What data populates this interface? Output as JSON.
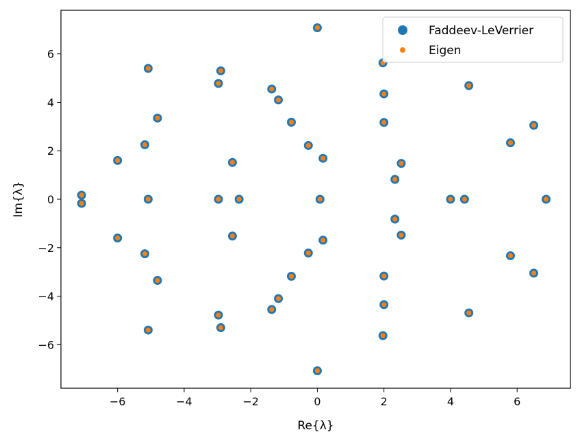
{
  "chart_data": {
    "type": "scatter",
    "title": "",
    "xlabel": "Re{λ}",
    "ylabel": "Im{λ}",
    "xlim": [
      -7.7,
      7.6
    ],
    "ylim": [
      -7.8,
      7.8
    ],
    "xticks": [
      -6,
      -4,
      -2,
      0,
      2,
      4,
      6
    ],
    "yticks": [
      -6,
      -4,
      -2,
      0,
      2,
      4,
      6
    ],
    "tick_labels_x": [
      "−6",
      "−4",
      "−2",
      "0",
      "2",
      "4",
      "6"
    ],
    "tick_labels_y": [
      "−6",
      "−4",
      "−2",
      "0",
      "2",
      "4",
      "6"
    ],
    "grid": false,
    "legend_position": "top-right",
    "series": [
      {
        "name": "Faddeev-LeVerrier",
        "color": "#1f77b4",
        "marker": "large-circle",
        "points": [
          [
            0,
            7.08
          ],
          [
            -5.08,
            5.4
          ],
          [
            -2.9,
            5.3
          ],
          [
            -2.97,
            4.78
          ],
          [
            1.97,
            5.63
          ],
          [
            4.55,
            4.69
          ],
          [
            2.0,
            4.35
          ],
          [
            -1.37,
            4.55
          ],
          [
            -1.17,
            4.1
          ],
          [
            -0.78,
            3.18
          ],
          [
            -4.8,
            3.35
          ],
          [
            2.0,
            3.17
          ],
          [
            6.5,
            3.05
          ],
          [
            -5.18,
            2.25
          ],
          [
            -0.27,
            2.22
          ],
          [
            5.8,
            2.33
          ],
          [
            -6.0,
            1.6
          ],
          [
            -2.55,
            1.52
          ],
          [
            0.17,
            1.69
          ],
          [
            2.52,
            1.48
          ],
          [
            2.33,
            0.82
          ],
          [
            -7.08,
            0.17
          ],
          [
            -7.08,
            -0.17
          ],
          [
            -5.08,
            0.0
          ],
          [
            -2.97,
            0.0
          ],
          [
            -2.35,
            0.0
          ],
          [
            0.08,
            0.0
          ],
          [
            4.0,
            0.0
          ],
          [
            4.42,
            0.0
          ],
          [
            6.87,
            0.0
          ],
          [
            2.33,
            -0.82
          ],
          [
            2.52,
            -1.48
          ],
          [
            -6.0,
            -1.6
          ],
          [
            -2.55,
            -1.52
          ],
          [
            0.17,
            -1.69
          ],
          [
            -5.18,
            -2.25
          ],
          [
            -0.27,
            -2.22
          ],
          [
            5.8,
            -2.33
          ],
          [
            -0.78,
            -3.18
          ],
          [
            2.0,
            -3.17
          ],
          [
            6.5,
            -3.05
          ],
          [
            -4.8,
            -3.35
          ],
          [
            -1.17,
            -4.1
          ],
          [
            -1.37,
            -4.55
          ],
          [
            2.0,
            -4.35
          ],
          [
            4.55,
            -4.69
          ],
          [
            -2.97,
            -4.78
          ],
          [
            -2.9,
            -5.3
          ],
          [
            1.97,
            -5.63
          ],
          [
            -5.08,
            -5.4
          ],
          [
            0,
            -7.08
          ]
        ]
      },
      {
        "name": "Eigen",
        "color": "#ff7f0e",
        "marker": "small-circle",
        "points": [
          [
            0,
            7.08
          ],
          [
            -5.08,
            5.4
          ],
          [
            -2.9,
            5.3
          ],
          [
            -2.97,
            4.78
          ],
          [
            1.97,
            5.63
          ],
          [
            4.55,
            4.69
          ],
          [
            2.0,
            4.35
          ],
          [
            -1.37,
            4.55
          ],
          [
            -1.17,
            4.1
          ],
          [
            -0.78,
            3.18
          ],
          [
            -4.8,
            3.35
          ],
          [
            2.0,
            3.17
          ],
          [
            6.5,
            3.05
          ],
          [
            -5.18,
            2.25
          ],
          [
            -0.27,
            2.22
          ],
          [
            5.8,
            2.33
          ],
          [
            -6.0,
            1.6
          ],
          [
            -2.55,
            1.52
          ],
          [
            0.17,
            1.69
          ],
          [
            2.52,
            1.48
          ],
          [
            2.33,
            0.82
          ],
          [
            -7.08,
            0.17
          ],
          [
            -7.08,
            -0.17
          ],
          [
            -5.08,
            0.0
          ],
          [
            -2.97,
            0.0
          ],
          [
            -2.35,
            0.0
          ],
          [
            0.08,
            0.0
          ],
          [
            4.0,
            0.0
          ],
          [
            4.42,
            0.0
          ],
          [
            6.87,
            0.0
          ],
          [
            2.33,
            -0.82
          ],
          [
            2.52,
            -1.48
          ],
          [
            -6.0,
            -1.6
          ],
          [
            -2.55,
            -1.52
          ],
          [
            0.17,
            -1.69
          ],
          [
            -5.18,
            -2.25
          ],
          [
            -0.27,
            -2.22
          ],
          [
            5.8,
            -2.33
          ],
          [
            -0.78,
            -3.18
          ],
          [
            2.0,
            -3.17
          ],
          [
            6.5,
            -3.05
          ],
          [
            -4.8,
            -3.35
          ],
          [
            -1.17,
            -4.1
          ],
          [
            -1.37,
            -4.55
          ],
          [
            2.0,
            -4.35
          ],
          [
            4.55,
            -4.69
          ],
          [
            -2.97,
            -4.78
          ],
          [
            -2.9,
            -5.3
          ],
          [
            1.97,
            -5.63
          ],
          [
            -5.08,
            -5.4
          ],
          [
            0,
            -7.08
          ]
        ]
      }
    ]
  }
}
